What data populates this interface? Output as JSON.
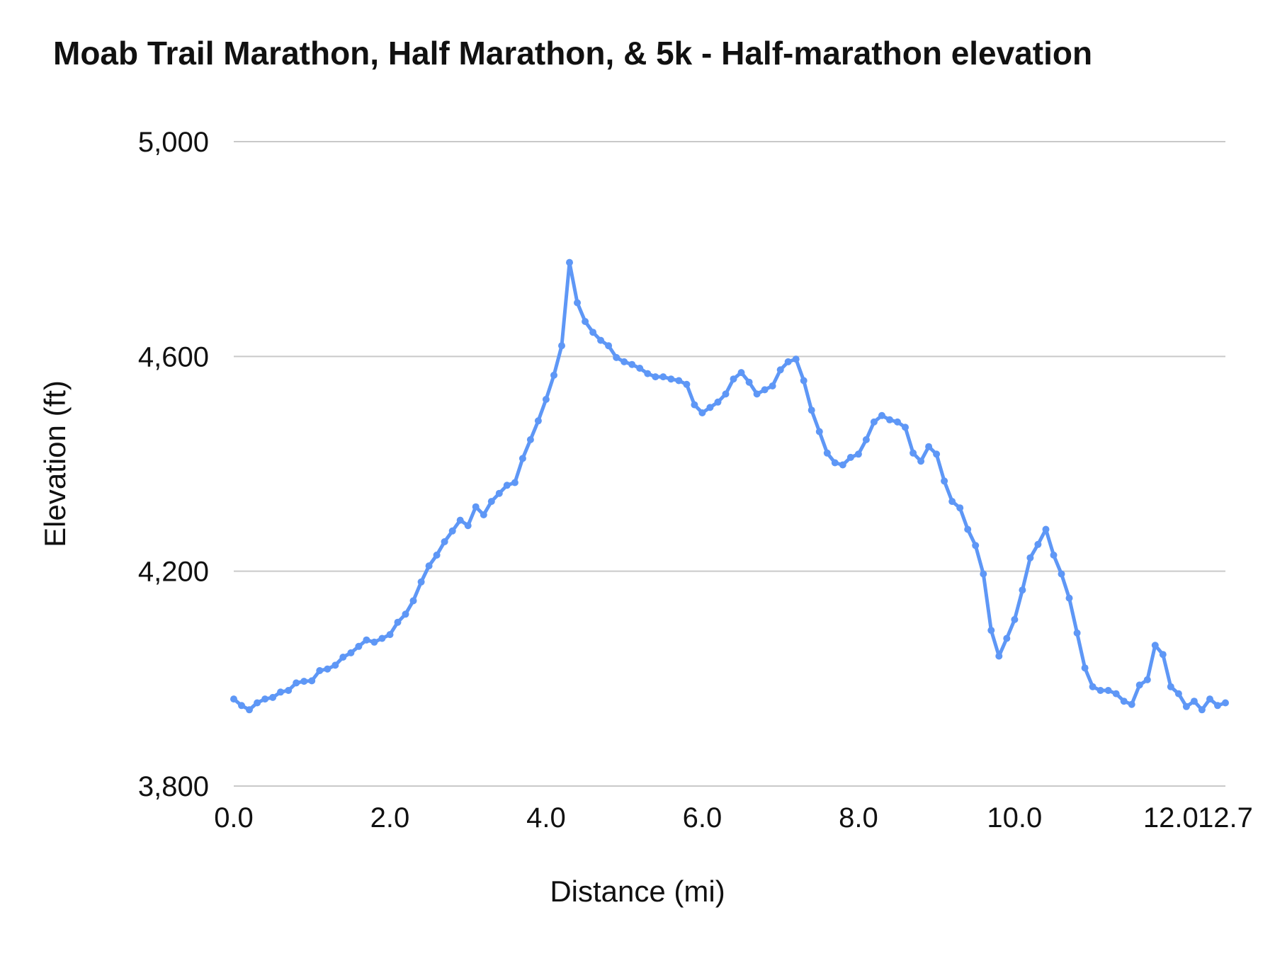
{
  "chart_data": {
    "type": "line",
    "title": "Moab Trail Marathon, Half Marathon, & 5k - Half-marathon elevation",
    "xlabel": "Distance (mi)",
    "ylabel": "Elevation (ft)",
    "xlim": [
      0,
      12.7
    ],
    "ylim": [
      3800,
      5000
    ],
    "grid": "horizontal",
    "legend": "none",
    "line_color": "#5e97f6",
    "grid_color": "#c9c9c9",
    "text_color": "#111111",
    "x_ticks": [
      {
        "value": 0,
        "label": "0.0"
      },
      {
        "value": 2,
        "label": "2.0"
      },
      {
        "value": 4,
        "label": "4.0"
      },
      {
        "value": 6,
        "label": "6.0"
      },
      {
        "value": 8,
        "label": "8.0"
      },
      {
        "value": 10,
        "label": "10.0"
      },
      {
        "value": 12,
        "label": "12.0"
      },
      {
        "value": 12.7,
        "label": "12.7"
      }
    ],
    "y_ticks": [
      {
        "value": 3800,
        "label": "3,800"
      },
      {
        "value": 4200,
        "label": "4,200"
      },
      {
        "value": 4600,
        "label": "4,600"
      },
      {
        "value": 5000,
        "label": "5,000"
      }
    ],
    "series": [
      {
        "name": "Half-marathon elevation",
        "x": [
          0,
          0.1,
          0.2,
          0.3,
          0.4,
          0.5,
          0.6,
          0.7,
          0.8,
          0.9,
          1,
          1.1,
          1.2,
          1.3,
          1.4,
          1.5,
          1.6,
          1.7,
          1.8,
          1.9,
          2,
          2.1,
          2.2,
          2.3,
          2.4,
          2.5,
          2.6,
          2.7,
          2.8,
          2.9,
          3,
          3.1,
          3.2,
          3.3,
          3.4,
          3.5,
          3.6,
          3.7,
          3.8,
          3.9,
          4,
          4.1,
          4.2,
          4.3,
          4.4,
          4.5,
          4.6,
          4.7,
          4.8,
          4.9,
          5,
          5.1,
          5.2,
          5.3,
          5.4,
          5.5,
          5.6,
          5.7,
          5.8,
          5.9,
          6,
          6.1,
          6.2,
          6.3,
          6.4,
          6.5,
          6.6,
          6.7,
          6.8,
          6.9,
          7,
          7.1,
          7.2,
          7.3,
          7.4,
          7.5,
          7.6,
          7.7,
          7.8,
          7.9,
          8,
          8.1,
          8.2,
          8.3,
          8.4,
          8.5,
          8.6,
          8.7,
          8.8,
          8.9,
          9,
          9.1,
          9.2,
          9.3,
          9.4,
          9.5,
          9.6,
          9.7,
          9.8,
          9.9,
          10,
          10.1,
          10.2,
          10.3,
          10.4,
          10.5,
          10.6,
          10.7,
          10.8,
          10.9,
          11,
          11.1,
          11.2,
          11.3,
          11.4,
          11.5,
          11.6,
          11.7,
          11.8,
          11.9,
          12,
          12.1,
          12.2,
          12.3,
          12.4,
          12.5,
          12.6,
          12.7
        ],
        "y": [
          3962,
          3950,
          3942,
          3955,
          3962,
          3965,
          3975,
          3978,
          3992,
          3995,
          3996,
          4015,
          4018,
          4025,
          4040,
          4048,
          4060,
          4072,
          4068,
          4075,
          4082,
          4105,
          4120,
          4145,
          4180,
          4210,
          4230,
          4255,
          4275,
          4295,
          4285,
          4320,
          4305,
          4330,
          4345,
          4360,
          4365,
          4410,
          4445,
          4480,
          4520,
          4565,
          4620,
          4775,
          4700,
          4665,
          4645,
          4630,
          4620,
          4598,
          4590,
          4585,
          4578,
          4568,
          4562,
          4562,
          4558,
          4555,
          4548,
          4510,
          4495,
          4505,
          4515,
          4530,
          4558,
          4570,
          4552,
          4530,
          4538,
          4545,
          4575,
          4590,
          4595,
          4555,
          4500,
          4460,
          4420,
          4402,
          4398,
          4412,
          4418,
          4445,
          4478,
          4490,
          4482,
          4478,
          4468,
          4420,
          4405,
          4432,
          4418,
          4368,
          4330,
          4318,
          4278,
          4248,
          4195,
          4090,
          4042,
          4075,
          4110,
          4165,
          4225,
          4250,
          4278,
          4230,
          4195,
          4150,
          4085,
          4020,
          3985,
          3978,
          3978,
          3972,
          3958,
          3952,
          3988,
          3998,
          4062,
          4045,
          3985,
          3972,
          3948,
          3958,
          3942,
          3962,
          3950,
          3955
        ]
      }
    ]
  }
}
